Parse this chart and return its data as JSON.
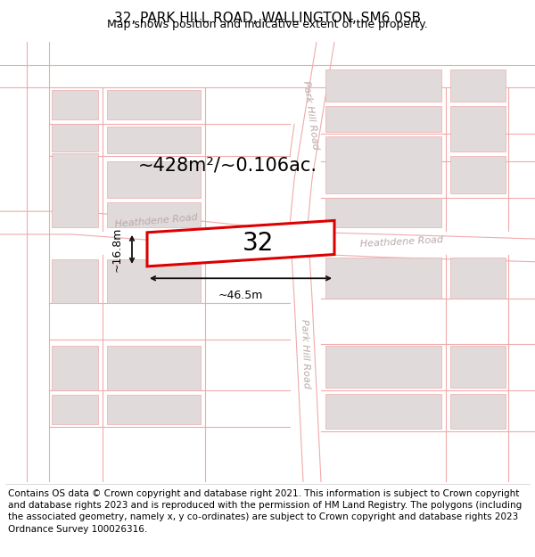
{
  "title": "32, PARK HILL ROAD, WALLINGTON, SM6 0SB",
  "subtitle": "Map shows position and indicative extent of the property.",
  "footer": "Contains OS data © Crown copyright and database right 2021. This information is subject to Crown copyright and database rights 2023 and is reproduced with the permission of HM Land Registry. The polygons (including the associated geometry, namely x, y co-ordinates) are subject to Crown copyright and database rights 2023 Ordnance Survey 100026316.",
  "map_bg": "#ffffff",
  "area_label": "~428m²/~0.106ac.",
  "property_number": "32",
  "width_label": "~46.5m",
  "height_label": "~16.8m",
  "road_line_color": "#f0aaaa",
  "building_fill": "#e0dada",
  "building_edge": "#f0aaaa",
  "property_outline_color": "#dd0000",
  "dim_line_color": "#111111",
  "road_label_color": "#bbaaaa",
  "title_fontsize": 11,
  "subtitle_fontsize": 9,
  "footer_fontsize": 7.5,
  "area_fontsize": 15,
  "number_fontsize": 20,
  "dim_fontsize": 9,
  "road_label_fontsize": 8
}
